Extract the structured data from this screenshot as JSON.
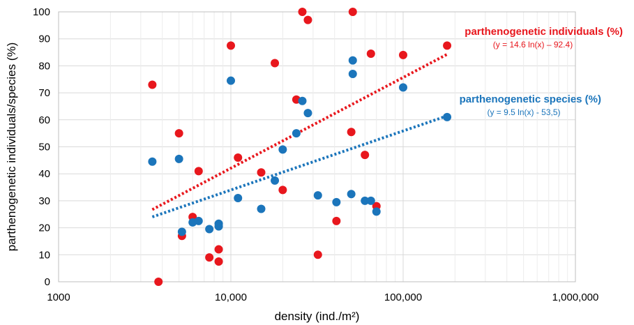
{
  "chart_data": {
    "type": "scatter",
    "title": "",
    "xlabel": "density (ind./m²)",
    "ylabel": "parthenogenetic individuals/species (%)",
    "x_scale": "log",
    "xlim": [
      1000,
      1000000
    ],
    "ylim": [
      0,
      100
    ],
    "x_ticks": [
      {
        "value": 1000,
        "label": "1000"
      },
      {
        "value": 10000,
        "label": "10,000"
      },
      {
        "value": 100000,
        "label": "100,000"
      },
      {
        "value": 1000000,
        "label": "1,000,000"
      }
    ],
    "y_ticks": [
      {
        "value": 0,
        "label": "0"
      },
      {
        "value": 10,
        "label": "10"
      },
      {
        "value": 20,
        "label": "20"
      },
      {
        "value": 30,
        "label": "30"
      },
      {
        "value": 40,
        "label": "40"
      },
      {
        "value": 50,
        "label": "50"
      },
      {
        "value": 60,
        "label": "60"
      },
      {
        "value": 70,
        "label": "70"
      },
      {
        "value": 80,
        "label": "80"
      },
      {
        "value": 90,
        "label": "90"
      },
      {
        "value": 100,
        "label": "100"
      }
    ],
    "grid": true,
    "series": [
      {
        "name": "parthenogenetic individuals (%)",
        "color": "#e8171d",
        "trendline": {
          "equation": "(y = 14.6 ln(x) – 92.4)",
          "a": 14.6,
          "b": -92.4,
          "x_range": [
            3500,
            180000
          ]
        },
        "points": [
          {
            "x": 3500,
            "y": 73
          },
          {
            "x": 3800,
            "y": 0
          },
          {
            "x": 5000,
            "y": 55
          },
          {
            "x": 5200,
            "y": 17
          },
          {
            "x": 6000,
            "y": 24
          },
          {
            "x": 6500,
            "y": 41
          },
          {
            "x": 7500,
            "y": 9
          },
          {
            "x": 8500,
            "y": 12
          },
          {
            "x": 8500,
            "y": 7.5
          },
          {
            "x": 10000,
            "y": 87.5
          },
          {
            "x": 11000,
            "y": 46
          },
          {
            "x": 15000,
            "y": 40.5
          },
          {
            "x": 18000,
            "y": 81
          },
          {
            "x": 20000,
            "y": 34
          },
          {
            "x": 24000,
            "y": 67.5
          },
          {
            "x": 26000,
            "y": 100
          },
          {
            "x": 28000,
            "y": 97
          },
          {
            "x": 32000,
            "y": 10
          },
          {
            "x": 41000,
            "y": 22.5
          },
          {
            "x": 50000,
            "y": 55.5
          },
          {
            "x": 51000,
            "y": 100
          },
          {
            "x": 60000,
            "y": 47
          },
          {
            "x": 65000,
            "y": 84.5
          },
          {
            "x": 70000,
            "y": 28
          },
          {
            "x": 100000,
            "y": 84
          },
          {
            "x": 180000,
            "y": 87.5
          }
        ]
      },
      {
        "name": "parthenogenetic species (%)",
        "color": "#1b75bb",
        "trendline": {
          "equation": "(y = 9.5 ln(x) - 53,5)",
          "a": 9.5,
          "b": -53.5,
          "x_range": [
            3500,
            180000
          ]
        },
        "points": [
          {
            "x": 3500,
            "y": 44.5
          },
          {
            "x": 5000,
            "y": 45.5
          },
          {
            "x": 5200,
            "y": 18.5
          },
          {
            "x": 6000,
            "y": 22
          },
          {
            "x": 6500,
            "y": 22.5
          },
          {
            "x": 7500,
            "y": 19.5
          },
          {
            "x": 8500,
            "y": 21.5
          },
          {
            "x": 8500,
            "y": 20.5
          },
          {
            "x": 10000,
            "y": 74.5
          },
          {
            "x": 11000,
            "y": 31
          },
          {
            "x": 15000,
            "y": 27
          },
          {
            "x": 18000,
            "y": 37.5
          },
          {
            "x": 20000,
            "y": 49
          },
          {
            "x": 24000,
            "y": 55
          },
          {
            "x": 26000,
            "y": 67
          },
          {
            "x": 28000,
            "y": 62.5
          },
          {
            "x": 32000,
            "y": 32
          },
          {
            "x": 41000,
            "y": 29.5
          },
          {
            "x": 50000,
            "y": 32.5
          },
          {
            "x": 51000,
            "y": 82
          },
          {
            "x": 51000,
            "y": 77
          },
          {
            "x": 60000,
            "y": 30
          },
          {
            "x": 65000,
            "y": 30
          },
          {
            "x": 70000,
            "y": 26
          },
          {
            "x": 100000,
            "y": 72
          },
          {
            "x": 180000,
            "y": 61
          }
        ]
      }
    ],
    "annotations": [
      {
        "series": 0,
        "title": "parthenogenetic individuals (%)",
        "equation": "(y = 14.6 ln(x) – 92.4)"
      },
      {
        "series": 1,
        "title": "parthenogenetic species (%)",
        "equation": "(y = 9.5 ln(x) - 53,5)"
      }
    ]
  }
}
